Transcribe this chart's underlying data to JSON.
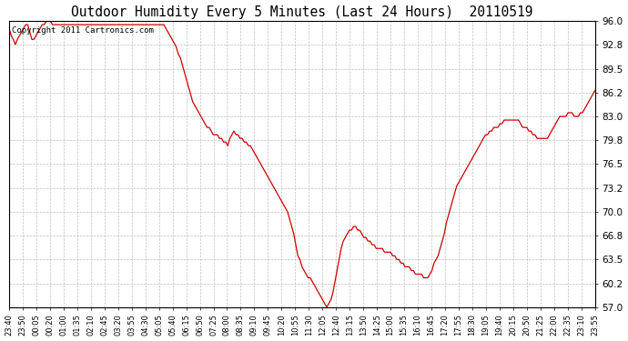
{
  "title": "Outdoor Humidity Every 5 Minutes (Last 24 Hours)  20110519",
  "copyright_text": "Copyright 2011 Cartronics.com",
  "line_color": "#cc0000",
  "background_color": "#ffffff",
  "grid_color": "#b0b0b0",
  "y_ticks": [
    57.0,
    60.2,
    63.5,
    66.8,
    70.0,
    73.2,
    76.5,
    79.8,
    83.0,
    86.2,
    89.5,
    92.8,
    96.0
  ],
  "ylim": [
    57.0,
    96.0
  ],
  "x_tick_labels": [
    "23:40",
    "23:50",
    "00:05",
    "00:20",
    "01:00",
    "01:35",
    "02:10",
    "02:45",
    "03:20",
    "03:55",
    "04:30",
    "05:05",
    "05:40",
    "06:15",
    "06:50",
    "07:25",
    "08:00",
    "08:35",
    "09:10",
    "09:45",
    "10:20",
    "10:55",
    "11:30",
    "12:05",
    "12:40",
    "13:15",
    "13:50",
    "14:25",
    "15:00",
    "15:35",
    "16:10",
    "16:45",
    "17:20",
    "17:55",
    "18:30",
    "19:05",
    "19:40",
    "20:15",
    "20:50",
    "21:25",
    "22:00",
    "22:35",
    "23:10",
    "23:55"
  ],
  "humidity_values": [
    95.0,
    94.0,
    93.5,
    92.8,
    93.5,
    94.0,
    94.5,
    95.0,
    95.5,
    95.5,
    94.5,
    93.5,
    93.5,
    94.0,
    94.5,
    95.0,
    95.5,
    95.5,
    96.0,
    96.0,
    96.0,
    95.5,
    95.5,
    95.5,
    95.5,
    95.5,
    95.5,
    95.5,
    95.5,
    95.5,
    95.5,
    95.5,
    95.5,
    95.5,
    95.5,
    95.5,
    95.5,
    95.5,
    95.5,
    95.5,
    95.5,
    95.5,
    95.5,
    95.5,
    95.5,
    95.5,
    95.5,
    95.5,
    95.5,
    95.5,
    95.5,
    95.5,
    95.5,
    95.5,
    95.5,
    95.5,
    95.5,
    95.5,
    95.5,
    95.5,
    95.5,
    95.5,
    95.5,
    95.5,
    95.5,
    95.5,
    95.5,
    95.5,
    95.5,
    95.5,
    95.5,
    95.5,
    95.5,
    95.5,
    95.5,
    95.5,
    95.0,
    94.5,
    94.0,
    93.5,
    93.0,
    92.5,
    91.5,
    91.0,
    90.0,
    89.0,
    88.0,
    87.0,
    86.0,
    85.0,
    84.5,
    84.0,
    83.5,
    83.0,
    82.5,
    82.0,
    81.5,
    81.5,
    81.0,
    80.5,
    80.5,
    80.5,
    80.0,
    80.0,
    79.5,
    79.5,
    79.0,
    80.0,
    80.5,
    81.0,
    80.5,
    80.5,
    80.0,
    80.0,
    79.5,
    79.5,
    79.0,
    79.0,
    78.5,
    78.0,
    77.5,
    77.0,
    76.5,
    76.0,
    75.5,
    75.0,
    74.5,
    74.0,
    73.5,
    73.0,
    72.5,
    72.0,
    71.5,
    71.0,
    70.5,
    70.0,
    69.0,
    68.0,
    67.0,
    65.5,
    64.0,
    63.5,
    62.5,
    62.0,
    61.5,
    61.0,
    61.0,
    60.5,
    60.0,
    59.5,
    59.0,
    58.5,
    58.0,
    57.5,
    57.0,
    57.5,
    58.0,
    59.0,
    60.5,
    62.0,
    63.5,
    65.0,
    66.0,
    66.5,
    67.0,
    67.5,
    67.5,
    68.0,
    68.0,
    67.5,
    67.5,
    67.0,
    66.5,
    66.5,
    66.0,
    66.0,
    65.5,
    65.5,
    65.0,
    65.0,
    65.0,
    65.0,
    64.5,
    64.5,
    64.5,
    64.5,
    64.0,
    64.0,
    63.5,
    63.5,
    63.0,
    63.0,
    62.5,
    62.5,
    62.5,
    62.0,
    62.0,
    61.5,
    61.5,
    61.5,
    61.5,
    61.0,
    61.0,
    61.0,
    61.5,
    62.0,
    63.0,
    63.5,
    64.0,
    65.0,
    66.0,
    67.0,
    68.5,
    69.5,
    70.5,
    71.5,
    72.5,
    73.5,
    74.0,
    74.5,
    75.0,
    75.5,
    76.0,
    76.5,
    77.0,
    77.5,
    78.0,
    78.5,
    79.0,
    79.5,
    80.0,
    80.5,
    80.5,
    81.0,
    81.0,
    81.5,
    81.5,
    81.5,
    82.0,
    82.0,
    82.5,
    82.5,
    82.5,
    82.5,
    82.5,
    82.5,
    82.5,
    82.5,
    82.0,
    81.5,
    81.5,
    81.5,
    81.0,
    81.0,
    80.5,
    80.5,
    80.0,
    80.0,
    80.0,
    80.0,
    80.0,
    80.0,
    80.5,
    81.0,
    81.5,
    82.0,
    82.5,
    83.0,
    83.0,
    83.0,
    83.0,
    83.5,
    83.5,
    83.5,
    83.0,
    83.0,
    83.0,
    83.5,
    83.5,
    84.0,
    84.5,
    85.0,
    85.5,
    86.0,
    86.5
  ]
}
